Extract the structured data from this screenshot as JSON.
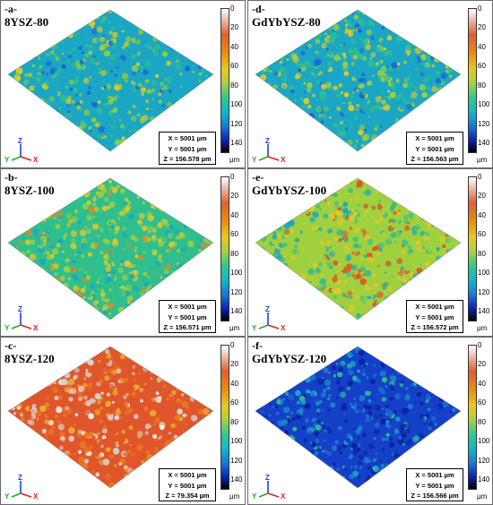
{
  "panels": [
    {
      "id": "a",
      "letter": "-a-",
      "title": "8YSZ-80",
      "x_readout": "X = 5001 µm",
      "y_readout": "Y = 5001 µm",
      "z_readout": "Z = 156.578 µm",
      "palette": [
        "#1aa6c4",
        "#2fbf8f",
        "#8fcf3e",
        "#e0c92a",
        "#1c64d8"
      ],
      "weights": [
        0.32,
        0.26,
        0.2,
        0.12,
        0.1
      ]
    },
    {
      "id": "d",
      "letter": "-d-",
      "title": "GdYbYSZ-80",
      "x_readout": "X = 5001 µm",
      "y_readout": "Y = 5001 µm",
      "z_readout": "Z = 156.563 µm",
      "palette": [
        "#1aa6c4",
        "#2fbf8f",
        "#9fd03e",
        "#e0c92a",
        "#1c64d8"
      ],
      "weights": [
        0.28,
        0.28,
        0.22,
        0.14,
        0.08
      ]
    },
    {
      "id": "b",
      "letter": "-b-",
      "title": "8YSZ-100",
      "x_readout": "X = 5001 µm",
      "y_readout": "Y = 5001 µm",
      "z_readout": "Z = 156.571 µm",
      "palette": [
        "#2fbf8f",
        "#9fd03e",
        "#e0c92a",
        "#1aa6c4",
        "#e08a20"
      ],
      "weights": [
        0.26,
        0.28,
        0.22,
        0.16,
        0.08
      ]
    },
    {
      "id": "e",
      "letter": "-e-",
      "title": "GdYbYSZ-100",
      "x_readout": "X = 5001 µm",
      "y_readout": "Y = 5001 µm",
      "z_readout": "Z = 156.572 µm",
      "palette": [
        "#9fd03e",
        "#e0c92a",
        "#2fbf8f",
        "#d85a28",
        "#1aa6c4"
      ],
      "weights": [
        0.28,
        0.26,
        0.2,
        0.16,
        0.1
      ]
    },
    {
      "id": "c",
      "letter": "-c-",
      "title": "8YSZ-120",
      "x_readout": "X = 5001 µm",
      "y_readout": "Y = 5001 µm",
      "z_readout": "Z = 79.354 µm",
      "palette": [
        "#e0562a",
        "#e87a20",
        "#d8d0d0",
        "#e8b030",
        "#f0f0f0"
      ],
      "weights": [
        0.4,
        0.22,
        0.18,
        0.12,
        0.08
      ]
    },
    {
      "id": "f",
      "letter": "-f-",
      "title": "GdYbYSZ-120",
      "x_readout": "X = 5001 µm",
      "y_readout": "Y = 5001 µm",
      "z_readout": "Z = 156.566 µm",
      "palette": [
        "#1540c8",
        "#0a22a0",
        "#1c78d8",
        "#1aa6c4",
        "#2fbf8f"
      ],
      "weights": [
        0.34,
        0.26,
        0.18,
        0.12,
        0.1
      ]
    }
  ],
  "colorbar": {
    "ticks": [
      "0",
      "20",
      "40",
      "60",
      "80",
      "100",
      "120",
      "140"
    ],
    "unit": "µm"
  },
  "axis_labels": {
    "x": "X",
    "y": "Y",
    "z": "Z"
  },
  "axis_colors": {
    "x": "#e02020",
    "y": "#20b020",
    "z": "#2040e0"
  }
}
